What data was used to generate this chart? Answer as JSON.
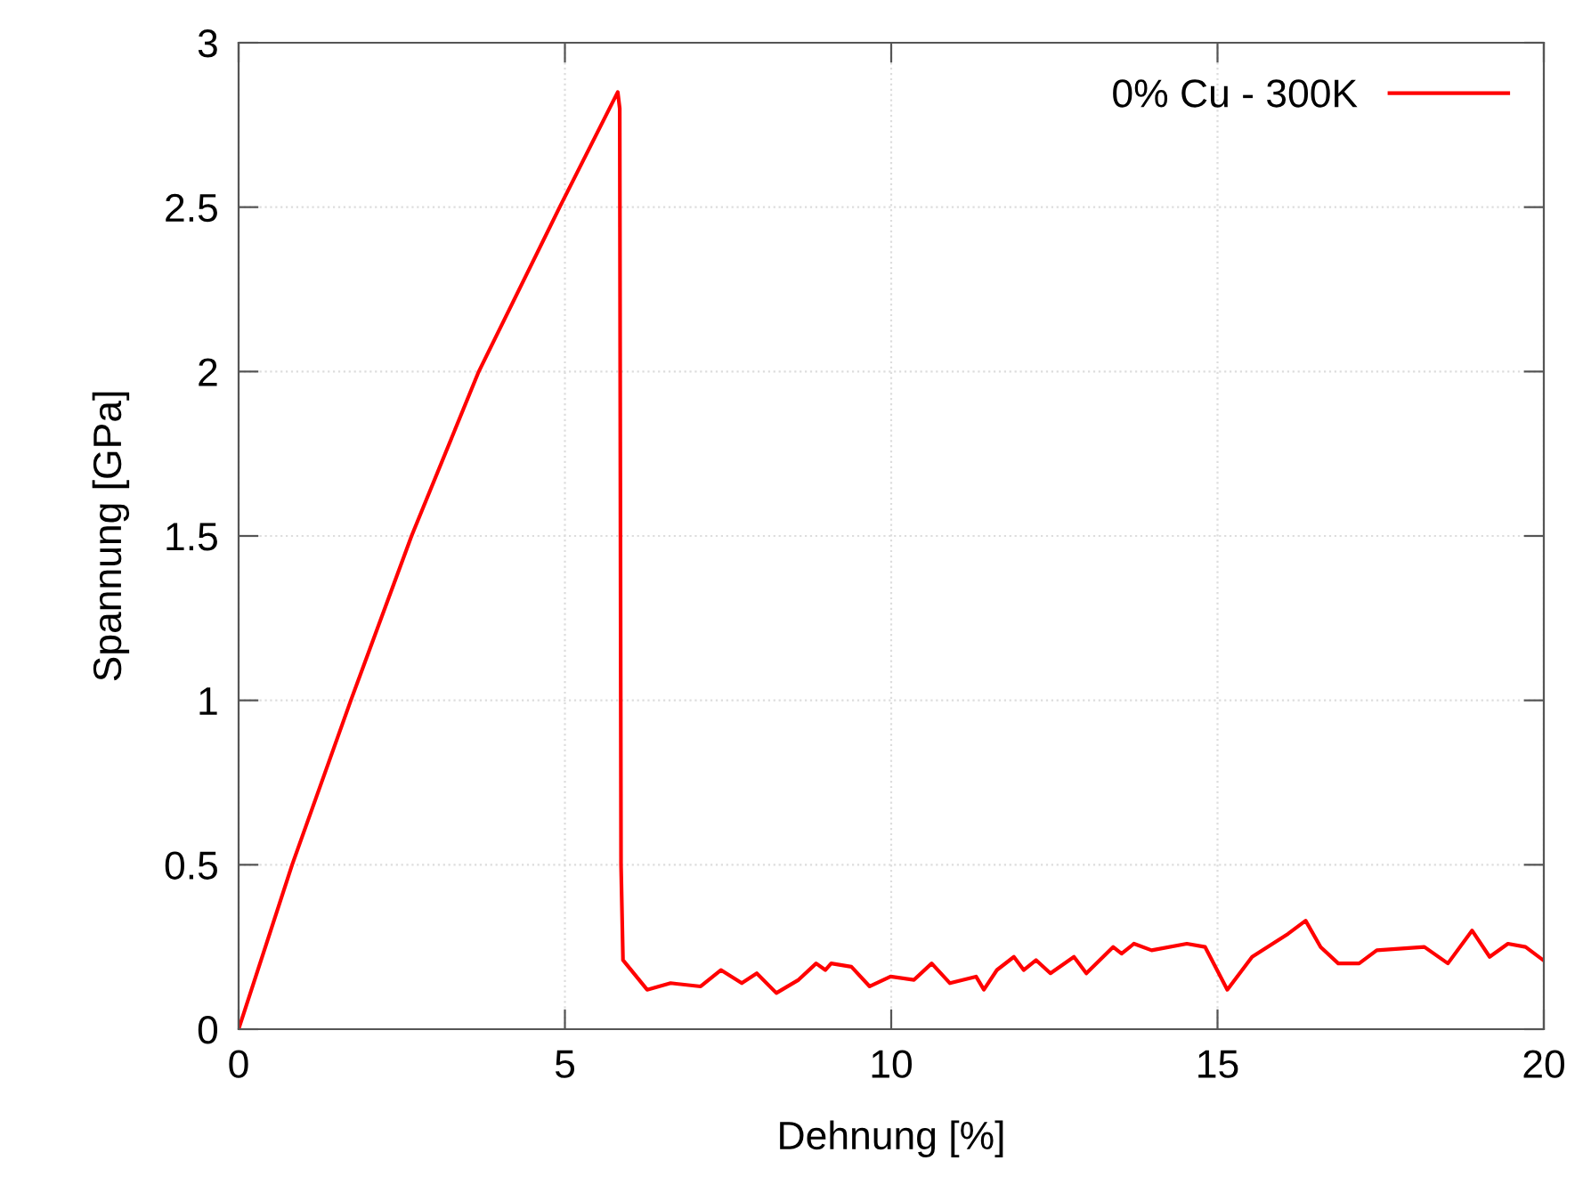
{
  "chart_data": {
    "type": "line",
    "xlabel": "Dehnung [%]",
    "ylabel": "Spannung [GPa]",
    "xlim": [
      0,
      20
    ],
    "xticks": [
      0,
      5,
      10,
      15,
      20
    ],
    "ylim": [
      0,
      3
    ],
    "yticks": [
      0,
      0.5,
      1,
      1.5,
      2,
      2.5,
      3
    ],
    "grid": true,
    "legend": "top right",
    "line_style": "solid",
    "series": [
      {
        "name": "0% Cu - 300K",
        "color": "#ff0000",
        "x": [
          0,
          0.82,
          1.72,
          2.65,
          3.68,
          4.92,
          5.81,
          5.84,
          5.86,
          5.89,
          6.26,
          6.62,
          7.08,
          7.39,
          7.71,
          7.94,
          8.24,
          8.58,
          8.85,
          8.99,
          9.08,
          9.39,
          9.67,
          9.99,
          10.35,
          10.62,
          10.9,
          11.3,
          11.42,
          11.62,
          11.88,
          12.03,
          12.22,
          12.44,
          12.8,
          12.99,
          13.4,
          13.53,
          13.72,
          13.99,
          14.53,
          14.81,
          15.15,
          15.53,
          16.08,
          16.35,
          16.58,
          16.85,
          17.17,
          17.44,
          18.17,
          18.53,
          18.9,
          19.17,
          19.45,
          19.72,
          19.99
        ],
        "values": [
          0,
          0.5,
          1,
          1.5,
          2,
          2.5,
          2.85,
          2.8,
          0.5,
          0.21,
          0.12,
          0.14,
          0.13,
          0.18,
          0.14,
          0.17,
          0.11,
          0.15,
          0.2,
          0.18,
          0.2,
          0.19,
          0.13,
          0.16,
          0.15,
          0.2,
          0.14,
          0.16,
          0.12,
          0.18,
          0.22,
          0.18,
          0.21,
          0.17,
          0.22,
          0.17,
          0.25,
          0.23,
          0.26,
          0.24,
          0.26,
          0.25,
          0.12,
          0.22,
          0.29,
          0.33,
          0.25,
          0.2,
          0.2,
          0.24,
          0.25,
          0.2,
          0.3,
          0.22,
          0.26,
          0.25,
          0.21
        ]
      }
    ]
  }
}
